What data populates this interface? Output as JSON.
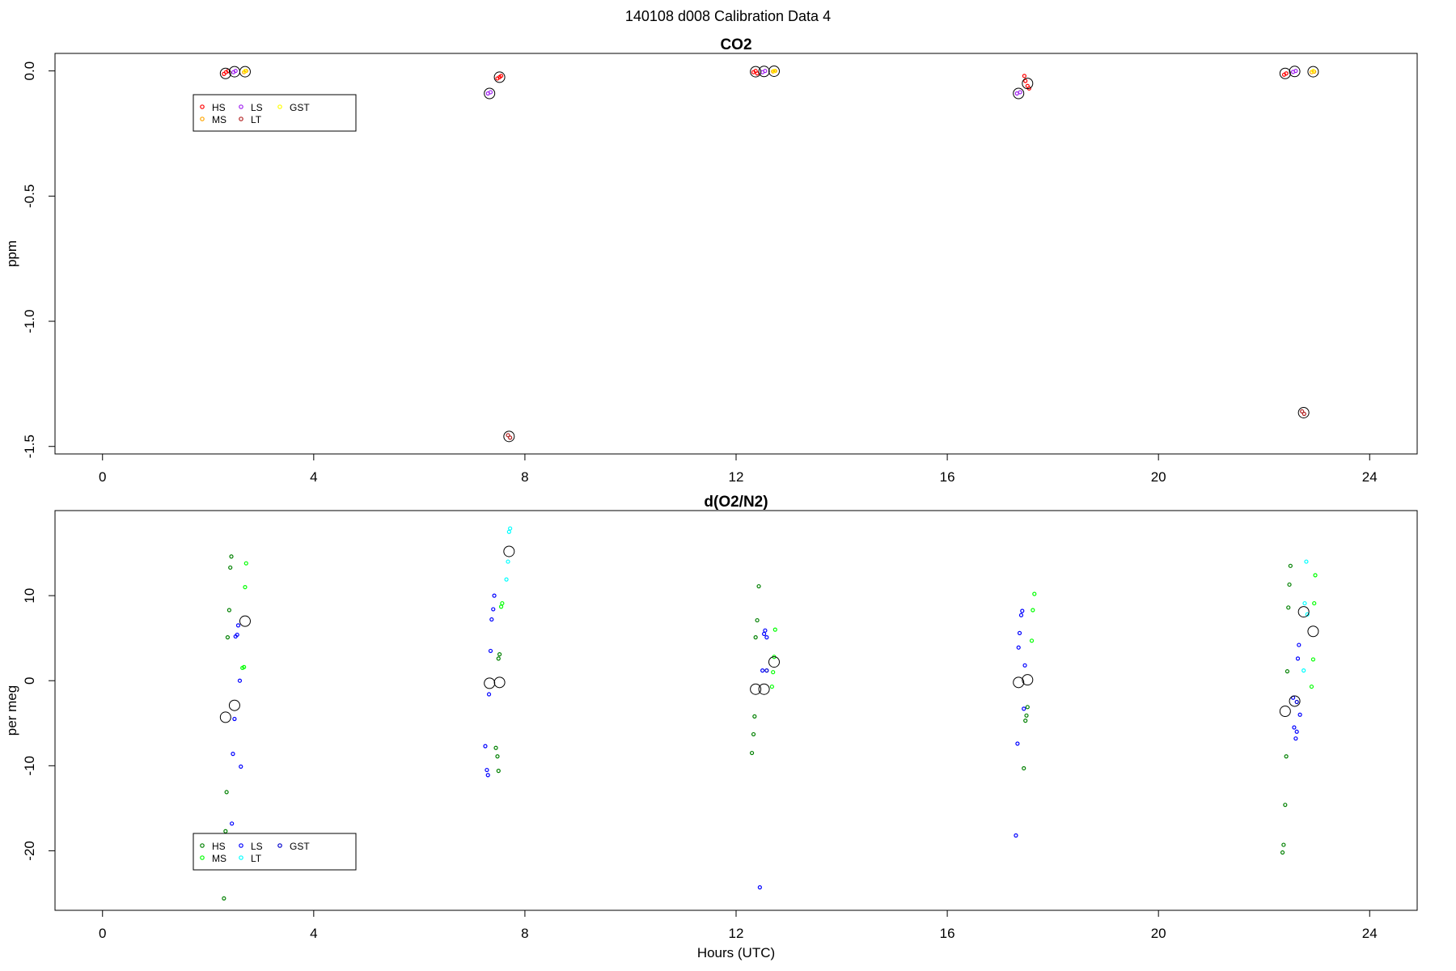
{
  "page": {
    "title": "140108   d008   Calibration Data 4"
  },
  "chart_data": [
    {
      "type": "scatter",
      "title": "CO2",
      "xlabel": "",
      "ylabel": "ppm",
      "xlim": [
        -0.9,
        24.9
      ],
      "ylim": [
        -1.53,
        0.07
      ],
      "xticks": [
        0,
        4,
        8,
        12,
        16,
        20,
        24
      ],
      "yticks": [
        0.0,
        -0.5,
        -1.0,
        -1.5
      ],
      "ytick_labels": [
        "0.0",
        "-0.5",
        "-1.0",
        "-1.5"
      ],
      "grid": false,
      "legend_position": "upper-left",
      "legend": [
        {
          "label": "HS",
          "color": "#ff0000"
        },
        {
          "label": "MS",
          "color": "#ffa500"
        },
        {
          "label": "LS",
          "color": "#a020f0"
        },
        {
          "label": "LT",
          "color": "#b22222"
        },
        {
          "label": "GST",
          "color": "#ffff00"
        }
      ],
      "series": [
        {
          "name": "HS",
          "color": "#ff0000",
          "points": [
            [
              2.3,
              -0.012
            ],
            [
              2.34,
              -0.005
            ],
            [
              2.38,
              0.0
            ],
            [
              7.48,
              -0.03
            ],
            [
              7.52,
              -0.025
            ],
            [
              7.55,
              -0.02
            ],
            [
              12.33,
              -0.005
            ],
            [
              12.37,
              0.0
            ],
            [
              12.4,
              -0.01
            ],
            [
              17.48,
              -0.04
            ],
            [
              17.52,
              -0.06
            ],
            [
              17.55,
              -0.07
            ],
            [
              17.46,
              -0.02
            ],
            [
              22.38,
              -0.015
            ],
            [
              22.42,
              -0.01
            ]
          ]
        },
        {
          "name": "MS",
          "color": "#ffa500",
          "points": [
            [
              2.68,
              -0.005
            ],
            [
              2.72,
              0.0
            ],
            [
              12.7,
              -0.002
            ],
            [
              12.74,
              0.0
            ],
            [
              22.9,
              -0.005
            ],
            [
              22.95,
              -0.003
            ]
          ]
        },
        {
          "name": "LS",
          "color": "#a020f0",
          "points": [
            [
              2.48,
              -0.005
            ],
            [
              2.52,
              0.0
            ],
            [
              7.3,
              -0.09
            ],
            [
              7.35,
              -0.085
            ],
            [
              12.5,
              -0.005
            ],
            [
              12.55,
              0.0
            ],
            [
              17.32,
              -0.09
            ],
            [
              17.38,
              -0.085
            ],
            [
              22.55,
              -0.004
            ],
            [
              22.6,
              0.0
            ]
          ]
        },
        {
          "name": "LT",
          "color": "#b22222",
          "points": [
            [
              7.68,
              -1.455
            ],
            [
              7.72,
              -1.465
            ],
            [
              22.72,
              -1.36
            ],
            [
              22.76,
              -1.37
            ]
          ]
        },
        {
          "name": "GST",
          "color": "#ffff00",
          "points": [
            [
              2.7,
              0.0
            ],
            [
              12.72,
              0.0
            ],
            [
              22.93,
              0.0
            ]
          ]
        }
      ],
      "means": [
        [
          2.33,
          -0.01
        ],
        [
          2.5,
          -0.003
        ],
        [
          2.7,
          -0.003
        ],
        [
          7.33,
          -0.09
        ],
        [
          7.52,
          -0.025
        ],
        [
          7.7,
          -1.46
        ],
        [
          12.37,
          -0.003
        ],
        [
          12.53,
          -0.002
        ],
        [
          12.72,
          -0.001
        ],
        [
          17.35,
          -0.09
        ],
        [
          17.52,
          -0.05
        ],
        [
          22.4,
          -0.01
        ],
        [
          22.58,
          -0.002
        ],
        [
          22.75,
          -1.365
        ],
        [
          22.93,
          -0.003
        ]
      ]
    },
    {
      "type": "scatter",
      "title": "d(O2/N2)",
      "xlabel": "Hours (UTC)",
      "ylabel": "per meg",
      "xlim": [
        -0.9,
        24.9
      ],
      "ylim": [
        -27,
        20
      ],
      "xticks": [
        0,
        4,
        8,
        12,
        16,
        20,
        24
      ],
      "yticks": [
        10,
        0,
        -10,
        -20
      ],
      "ytick_labels": [
        "10",
        "0",
        "-10",
        "-20"
      ],
      "grid": false,
      "legend_position": "lower-left",
      "legend": [
        {
          "label": "HS",
          "color": "#008000"
        },
        {
          "label": "MS",
          "color": "#00ff00"
        },
        {
          "label": "LS",
          "color": "#0000ff"
        },
        {
          "label": "LT",
          "color": "#00ffff"
        },
        {
          "label": "GST",
          "color": "#0000cd"
        }
      ],
      "series": [
        {
          "name": "HS",
          "color": "#008000",
          "points": [
            [
              2.3,
              -25.6
            ],
            [
              2.33,
              -17.7
            ],
            [
              2.35,
              -13.1
            ],
            [
              2.37,
              5.1
            ],
            [
              2.4,
              8.3
            ],
            [
              2.42,
              13.3
            ],
            [
              2.44,
              14.6
            ],
            [
              7.45,
              -7.9
            ],
            [
              7.48,
              -8.9
            ],
            [
              7.5,
              -10.6
            ],
            [
              7.5,
              2.6
            ],
            [
              7.52,
              3.1
            ],
            [
              12.3,
              -8.5
            ],
            [
              12.33,
              -6.3
            ],
            [
              12.35,
              -4.2
            ],
            [
              12.37,
              5.1
            ],
            [
              12.4,
              7.1
            ],
            [
              12.43,
              11.1
            ],
            [
              17.45,
              -10.3
            ],
            [
              17.48,
              -4.7
            ],
            [
              17.5,
              -4.1
            ],
            [
              17.52,
              -3.1
            ],
            [
              22.35,
              -20.2
            ],
            [
              22.37,
              -19.3
            ],
            [
              22.4,
              -14.6
            ],
            [
              22.42,
              -8.9
            ],
            [
              22.44,
              1.1
            ],
            [
              22.46,
              8.6
            ],
            [
              22.48,
              11.3
            ],
            [
              22.5,
              13.5
            ]
          ]
        },
        {
          "name": "MS",
          "color": "#00ff00",
          "points": [
            [
              2.65,
              1.5
            ],
            [
              2.68,
              1.6
            ],
            [
              2.7,
              11.0
            ],
            [
              2.72,
              13.8
            ],
            [
              7.55,
              8.7
            ],
            [
              7.57,
              9.1
            ],
            [
              12.68,
              -0.7
            ],
            [
              12.7,
              1.0
            ],
            [
              12.72,
              2.8
            ],
            [
              12.74,
              6.0
            ],
            [
              17.6,
              4.7
            ],
            [
              17.62,
              8.3
            ],
            [
              17.65,
              10.2
            ],
            [
              22.9,
              -0.7
            ],
            [
              22.93,
              2.5
            ],
            [
              22.95,
              9.1
            ],
            [
              22.97,
              12.4
            ]
          ]
        },
        {
          "name": "LS",
          "color": "#0000ff",
          "points": [
            [
              2.45,
              -16.8
            ],
            [
              2.47,
              -8.6
            ],
            [
              2.5,
              -4.5
            ],
            [
              2.52,
              5.2
            ],
            [
              2.55,
              5.4
            ],
            [
              2.57,
              6.5
            ],
            [
              2.6,
              0.0
            ],
            [
              2.62,
              -10.1
            ],
            [
              7.25,
              -7.7
            ],
            [
              7.28,
              -10.5
            ],
            [
              7.3,
              -11.1
            ],
            [
              7.32,
              -1.6
            ],
            [
              7.35,
              3.5
            ],
            [
              7.37,
              7.2
            ],
            [
              7.4,
              8.4
            ],
            [
              7.42,
              10.0
            ],
            [
              12.45,
              -24.3
            ],
            [
              12.5,
              1.2
            ],
            [
              12.53,
              5.5
            ],
            [
              12.55,
              5.9
            ],
            [
              12.58,
              5.1
            ],
            [
              17.3,
              -18.2
            ],
            [
              17.33,
              -7.4
            ],
            [
              17.35,
              3.9
            ],
            [
              17.37,
              5.6
            ],
            [
              17.4,
              7.7
            ],
            [
              17.42,
              8.2
            ],
            [
              17.45,
              -3.3
            ],
            [
              17.47,
              1.8
            ],
            [
              22.55,
              -2.0
            ],
            [
              22.57,
              -5.5
            ],
            [
              22.6,
              -6.8
            ],
            [
              22.62,
              -6.0
            ],
            [
              22.64,
              2.6
            ],
            [
              22.66,
              4.2
            ],
            [
              22.68,
              -4.0
            ]
          ]
        },
        {
          "name": "LT",
          "color": "#00ffff",
          "points": [
            [
              7.65,
              11.9
            ],
            [
              7.68,
              14.0
            ],
            [
              7.7,
              17.5
            ],
            [
              7.72,
              17.9
            ],
            [
              22.75,
              1.2
            ],
            [
              22.77,
              9.1
            ],
            [
              22.8,
              14.0
            ],
            [
              22.82,
              7.8
            ]
          ]
        },
        {
          "name": "GST",
          "color": "#0000cd",
          "points": [
            [
              12.58,
              1.2
            ],
            [
              22.62,
              -2.5
            ]
          ]
        }
      ],
      "means": [
        [
          2.33,
          -4.3
        ],
        [
          2.5,
          -2.9
        ],
        [
          2.7,
          7.0
        ],
        [
          7.33,
          -0.3
        ],
        [
          7.52,
          -0.2
        ],
        [
          7.7,
          15.2
        ],
        [
          12.37,
          -1.0
        ],
        [
          12.53,
          -1.0
        ],
        [
          12.72,
          2.2
        ],
        [
          17.35,
          -0.2
        ],
        [
          17.52,
          0.1
        ],
        [
          22.4,
          -3.6
        ],
        [
          22.58,
          -2.4
        ],
        [
          22.75,
          8.1
        ],
        [
          22.93,
          5.8
        ]
      ]
    }
  ]
}
